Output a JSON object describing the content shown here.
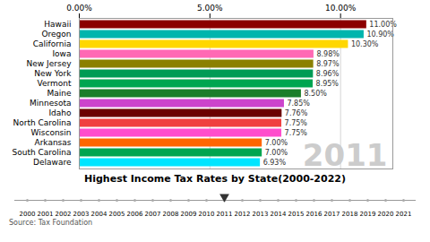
{
  "chart_data": [
    {
      "type": "bar",
      "orientation": "horizontal",
      "title": "Highest Income Tax Rates by State(2000-2022)",
      "categories": [
        "Hawaii",
        "Oregon",
        "California",
        "Iowa",
        "New Jersey",
        "New York",
        "Vermont",
        "Maine",
        "Minnesota",
        "Idaho",
        "North Carolina",
        "Wisconsin",
        "Arkansas",
        "South Carolina",
        "Delaware"
      ],
      "values": [
        11.0,
        10.9,
        10.3,
        8.98,
        8.97,
        8.96,
        8.95,
        8.5,
        7.85,
        7.76,
        7.75,
        7.75,
        7.0,
        7.0,
        6.93
      ],
      "value_labels": [
        "11.00%",
        "10.90%",
        "10.30%",
        "8.98%",
        "8.97%",
        "8.96%",
        "8.95%",
        "8.50%",
        "7.85%",
        "7.76%",
        "7.75%",
        "7.75%",
        "7.00%",
        "7.00%",
        "6.93%"
      ],
      "colors": [
        "#8B0000",
        "#00B5AD",
        "#FFD700",
        "#FF69B4",
        "#8B8000",
        "#009B55",
        "#00A550",
        "#1B7E2A",
        "#CC44CC",
        "#6B0000",
        "#F04040",
        "#FF4DCC",
        "#FF6600",
        "#00A550",
        "#00E5FF"
      ],
      "xlim": [
        0,
        12
      ],
      "xticks": [
        {
          "value": 0,
          "label": "0.00%"
        },
        {
          "value": 5,
          "label": "5.00%"
        },
        {
          "value": 10,
          "label": "10.00%"
        }
      ],
      "grid": true,
      "data_labels": true,
      "annotations": [
        "2011",
        "Source: Tax Foundation"
      ]
    },
    {
      "type": "timeline",
      "categories": [
        "2000",
        "2001",
        "2002",
        "2003",
        "2004",
        "2005",
        "2006",
        "2007",
        "2008",
        "2009",
        "2010",
        "2011",
        "2012",
        "2013",
        "2014",
        "2015",
        "2016",
        "2017",
        "2018",
        "2019",
        "2020",
        "2021"
      ],
      "marker": "triangle"
    }
  ]
}
